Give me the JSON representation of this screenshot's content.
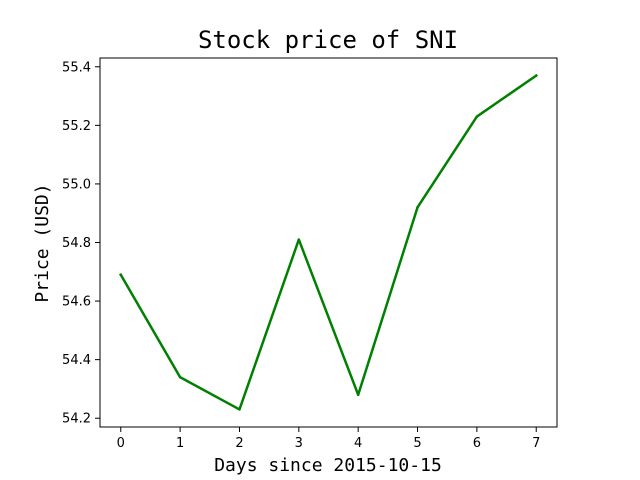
{
  "chart_data": {
    "type": "line",
    "title": "Stock price of SNI",
    "xlabel": "Days since 2015-10-15",
    "ylabel": "Price (USD)",
    "x": [
      0,
      1,
      2,
      3,
      4,
      5,
      6,
      7
    ],
    "series": [
      {
        "values": [
          54.69,
          54.34,
          54.23,
          54.81,
          54.28,
          54.92,
          55.23,
          55.37
        ],
        "color": "#008000"
      }
    ],
    "xticks": [
      "0",
      "1",
      "2",
      "3",
      "4",
      "5",
      "6",
      "7"
    ],
    "yticks": [
      "54.2",
      "54.4",
      "54.6",
      "54.8",
      "55.0",
      "55.2",
      "55.4"
    ],
    "xlim": [
      -0.35,
      7.35
    ],
    "ylim": [
      54.17,
      55.43
    ],
    "grid": false,
    "legend": "none"
  }
}
